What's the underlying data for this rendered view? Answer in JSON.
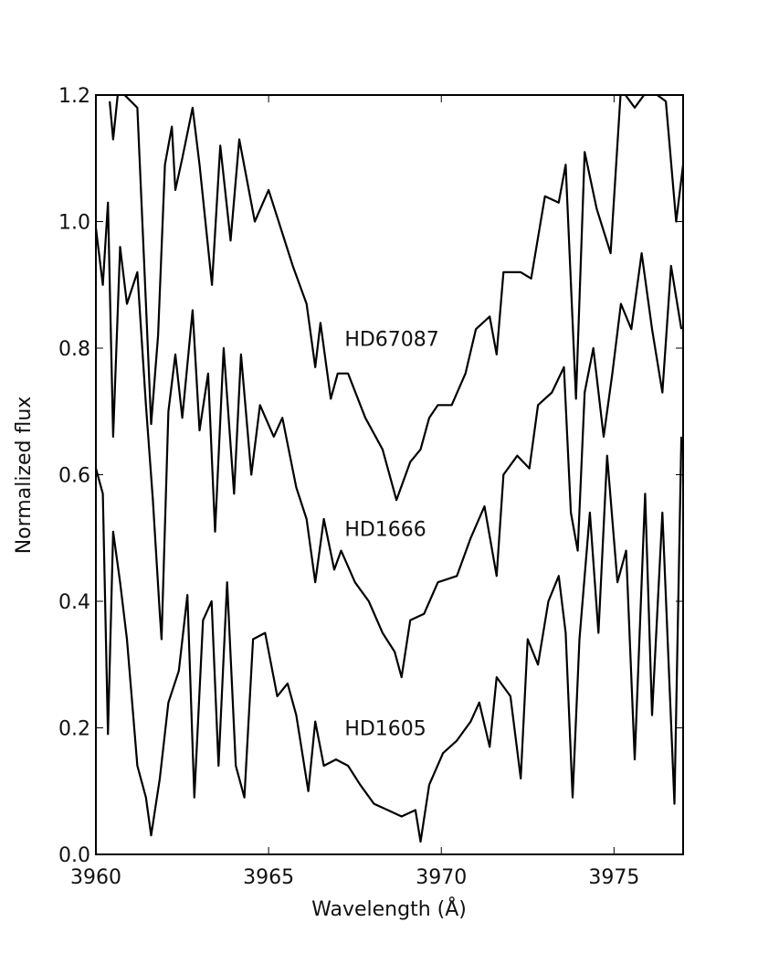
{
  "chart_data": {
    "type": "line",
    "xlabel": "Wavelength (Å)",
    "ylabel": "Normalized flux",
    "xlim": [
      3960,
      3977
    ],
    "ylim": [
      0,
      1.2
    ],
    "xticks": [
      3960,
      3965,
      3970,
      3975
    ],
    "yticks": [
      {
        "value": 0,
        "label": "0.0"
      },
      0.2,
      0.4,
      0.6,
      0.8,
      {
        "value": 1,
        "label": "1.0"
      },
      1.2
    ],
    "grid": false,
    "series": [
      {
        "name": "HD67087",
        "color": "#000000",
        "x": [
          3960.4,
          3960.5,
          3960.65,
          3961.2,
          3961.45,
          3961.6,
          3961.8,
          3962,
          3962.2,
          3962.3,
          3962.5,
          3962.8,
          3963,
          3963.36,
          3963.6,
          3963.9,
          3964.15,
          3964.6,
          3965,
          3965.7,
          3966.1,
          3966.35,
          3966.5,
          3966.8,
          3967,
          3967.3,
          3967.8,
          3968.3,
          3968.7,
          3969.1,
          3969.4,
          3969.65,
          3969.9,
          3970.3,
          3970.7,
          3971,
          3971.4,
          3971.6,
          3971.8,
          3972.3,
          3972.6,
          3973,
          3973.4,
          3973.6,
          3973.9,
          3974.15,
          3974.5,
          3974.9,
          3975.2,
          3975.6,
          3976,
          3976.5,
          3976.8,
          3977
        ],
        "values": [
          1.19,
          1.13,
          1.21,
          1.18,
          0.87,
          0.68,
          0.82,
          1.09,
          1.15,
          1.05,
          1.1,
          1.18,
          1.09,
          0.9,
          1.12,
          0.97,
          1.13,
          1.0,
          1.05,
          0.93,
          0.87,
          0.77,
          0.84,
          0.72,
          0.76,
          0.76,
          0.69,
          0.64,
          0.56,
          0.62,
          0.64,
          0.69,
          0.71,
          0.71,
          0.76,
          0.83,
          0.85,
          0.79,
          0.92,
          0.92,
          0.91,
          1.04,
          1.03,
          1.09,
          0.72,
          1.11,
          1.02,
          0.95,
          1.21,
          1.18,
          1.21,
          1.19,
          1.0,
          1.09
        ]
      },
      {
        "name": "HD1666",
        "color": "#000000",
        "x": [
          3960,
          3960.2,
          3960.35,
          3960.5,
          3960.7,
          3960.9,
          3961.2,
          3961.45,
          3961.65,
          3961.85,
          3961.9,
          3962.1,
          3962.3,
          3962.5,
          3962.8,
          3963,
          3963.25,
          3963.45,
          3963.7,
          3964,
          3964.2,
          3964.5,
          3964.75,
          3965.15,
          3965.4,
          3965.8,
          3966.1,
          3966.35,
          3966.6,
          3966.9,
          3967.1,
          3967.5,
          3967.9,
          3968.3,
          3968.65,
          3968.85,
          3969.1,
          3969.5,
          3969.9,
          3970.45,
          3970.85,
          3971.25,
          3971.6,
          3971.8,
          3972.2,
          3972.55,
          3972.8,
          3973.2,
          3973.55,
          3973.75,
          3973.95,
          3974.15,
          3974.4,
          3974.7,
          3974.95,
          3975.2,
          3975.5,
          3975.8,
          3976.1,
          3976.4,
          3976.65,
          3976.95
        ],
        "values": [
          0.99,
          0.9,
          1.03,
          0.66,
          0.96,
          0.87,
          0.92,
          0.71,
          0.56,
          0.38,
          0.34,
          0.7,
          0.79,
          0.69,
          0.86,
          0.67,
          0.76,
          0.51,
          0.8,
          0.57,
          0.79,
          0.6,
          0.71,
          0.66,
          0.69,
          0.58,
          0.53,
          0.43,
          0.53,
          0.45,
          0.48,
          0.43,
          0.4,
          0.35,
          0.32,
          0.28,
          0.37,
          0.38,
          0.43,
          0.44,
          0.5,
          0.55,
          0.44,
          0.6,
          0.63,
          0.61,
          0.71,
          0.73,
          0.77,
          0.54,
          0.48,
          0.73,
          0.8,
          0.66,
          0.76,
          0.87,
          0.83,
          0.95,
          0.83,
          0.73,
          0.93,
          0.83
        ]
      },
      {
        "name": "HD1605",
        "color": "#000000",
        "x": [
          3960,
          3960.2,
          3960.35,
          3960.5,
          3960.7,
          3960.9,
          3961.2,
          3961.45,
          3961.6,
          3961.85,
          3962.1,
          3962.4,
          3962.65,
          3962.85,
          3963.1,
          3963.35,
          3963.55,
          3963.8,
          3964.05,
          3964.3,
          3964.55,
          3964.9,
          3965.25,
          3965.55,
          3965.8,
          3966.15,
          3966.35,
          3966.6,
          3966.95,
          3967.3,
          3967.65,
          3968.05,
          3968.45,
          3968.85,
          3969.25,
          3969.4,
          3969.65,
          3970.05,
          3970.45,
          3970.85,
          3971.1,
          3971.4,
          3971.6,
          3972,
          3972.3,
          3972.5,
          3972.8,
          3973.1,
          3973.4,
          3973.6,
          3973.8,
          3974,
          3974.3,
          3974.55,
          3974.8,
          3975.1,
          3975.35,
          3975.6,
          3975.9,
          3976.1,
          3976.4,
          3976.75,
          3976.95
        ],
        "values": [
          0.61,
          0.57,
          0.19,
          0.51,
          0.43,
          0.34,
          0.14,
          0.09,
          0.03,
          0.12,
          0.24,
          0.29,
          0.41,
          0.09,
          0.37,
          0.4,
          0.14,
          0.43,
          0.14,
          0.09,
          0.34,
          0.35,
          0.25,
          0.27,
          0.22,
          0.1,
          0.21,
          0.14,
          0.15,
          0.14,
          0.11,
          0.08,
          0.07,
          0.06,
          0.07,
          0.02,
          0.11,
          0.16,
          0.18,
          0.21,
          0.24,
          0.17,
          0.28,
          0.25,
          0.12,
          0.34,
          0.3,
          0.4,
          0.44,
          0.35,
          0.09,
          0.34,
          0.54,
          0.35,
          0.63,
          0.43,
          0.48,
          0.15,
          0.57,
          0.22,
          0.54,
          0.08,
          0.66
        ]
      }
    ]
  }
}
